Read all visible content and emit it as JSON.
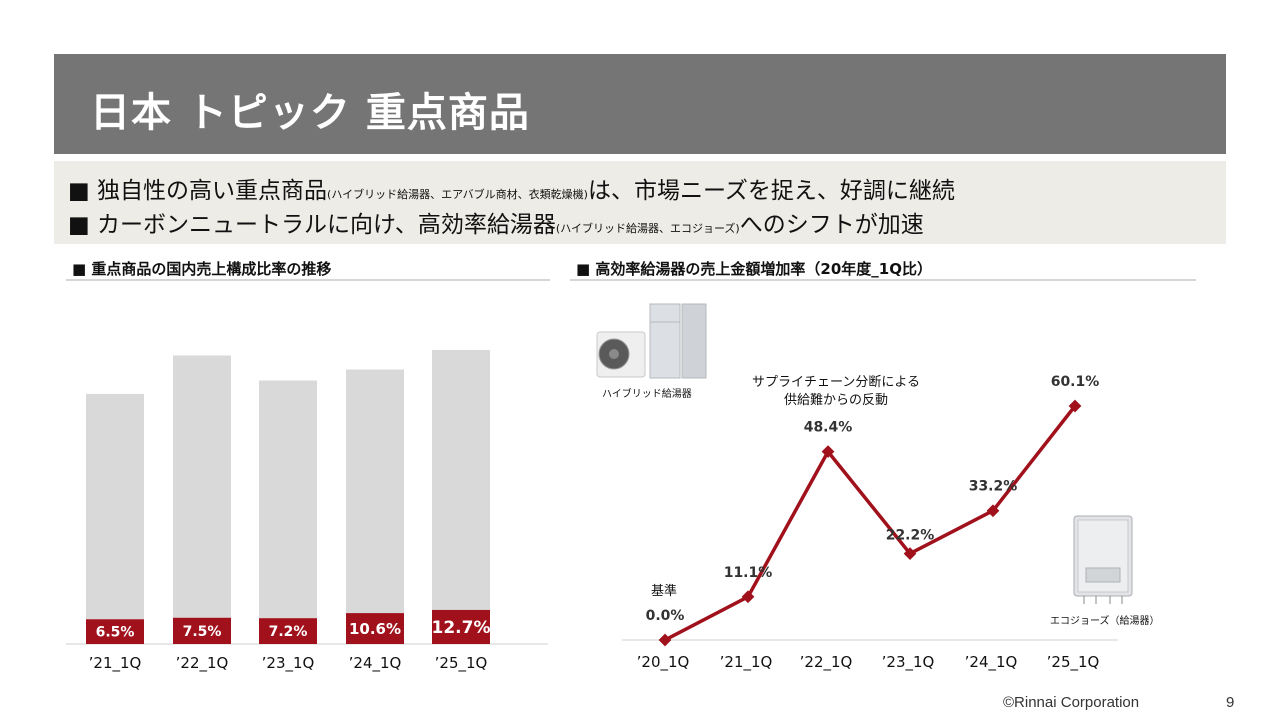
{
  "title": "日本 トピック 重点商品",
  "summary": {
    "line1_main": "■ 独自性の高い重点商品",
    "line1_small": "(ハイブリッド給湯器、エアバブル商材、衣類乾燥機)",
    "line1_end": "は、市場ニーズを捉え、好調に継続",
    "line2_main": "■ カーボンニュートラルに向け、高効率給湯器",
    "line2_small": "(ハイブリッド給湯器、エコジョーズ)",
    "line2_end": "へのシフトが加速"
  },
  "left_panel_title": "■ 重点商品の国内売上構成比率の推移",
  "right_panel_title": "■ 高効率給湯器の売上金額増加率（20年度_1Q比）",
  "annotation": "サプライチェーン分断による供給難からの反動",
  "annotation_lines": [
    "サプライチェーン分断による",
    "供給難からの反動"
  ],
  "baseline_label": "基準",
  "image_captions": {
    "hybrid": "ハイブリッド給湯器",
    "ecojozu": "エコジョーズ（給湯器）"
  },
  "colors": {
    "accent": "#a0111c",
    "bar_total": "#d9d9d9",
    "title_bar": "#757575",
    "summary_bg": "#eeece6"
  },
  "chart_data": [
    {
      "type": "bar",
      "title": "重点商品の国内売上構成比率の推移",
      "categories": [
        "’21_1Q",
        "’22_1Q",
        "’23_1Q",
        "’24_1Q",
        "’25_1Q"
      ],
      "series": [
        {
          "name": "重点商品",
          "values": [
            6.5,
            7.5,
            7.2,
            10.6,
            12.7
          ],
          "labels": [
            "6.5%",
            "7.5%",
            "7.2%",
            "10.6%",
            "12.7%"
          ]
        },
        {
          "name": "",
          "values": [
            100,
            100,
            100,
            100,
            100
          ]
        }
      ],
      "bar_total_relative_heights": [
        0.82,
        0.946,
        0.864,
        0.9,
        0.964
      ],
      "xlabel": "",
      "ylabel": ""
    },
    {
      "type": "line",
      "title": "高効率給湯器の売上金額増加率（20年度_1Q比）",
      "categories": [
        "’20_1Q",
        "’21_1Q",
        "’22_1Q",
        "’23_1Q",
        "’24_1Q",
        "’25_1Q"
      ],
      "values": [
        0.0,
        11.1,
        48.4,
        22.2,
        33.2,
        60.1
      ],
      "labels": [
        "0.0%",
        "11.1%",
        "48.4%",
        "22.2%",
        "33.2%",
        "60.1%"
      ],
      "ylim": [
        0,
        62
      ],
      "xlabel": "",
      "ylabel": ""
    }
  ],
  "footer": {
    "copyright": "©Rinnai Corporation",
    "page": "9"
  }
}
